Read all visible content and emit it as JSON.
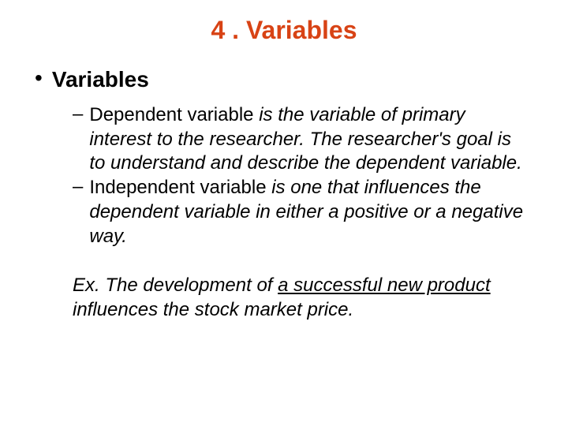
{
  "title": {
    "text": "4 . Variables",
    "color": "#d84315",
    "fontsize": 32
  },
  "bullet1": {
    "marker": "•",
    "text": "Variables",
    "color": "#000000",
    "fontsize": 28
  },
  "sub1": {
    "marker": "–",
    "body_fontsize": 24,
    "body_color": "#000000",
    "seg1": "Dependent variable ",
    "seg2": "is the variable of primary interest to the researcher. The researcher's goal is to understand and describe the dependent variable."
  },
  "sub2": {
    "marker": "–",
    "body_fontsize": 24,
    "body_color": "#000000",
    "seg1": "Independent variable ",
    "seg2": "is one that influences the dependent variable in either a positive or a negative way."
  },
  "example": {
    "body_fontsize": 24,
    "body_color": "#000000",
    "label": "Ex. ",
    "seg1": "The development of ",
    "seg2": "a successful new product",
    "seg3": " influences the stock market price."
  }
}
